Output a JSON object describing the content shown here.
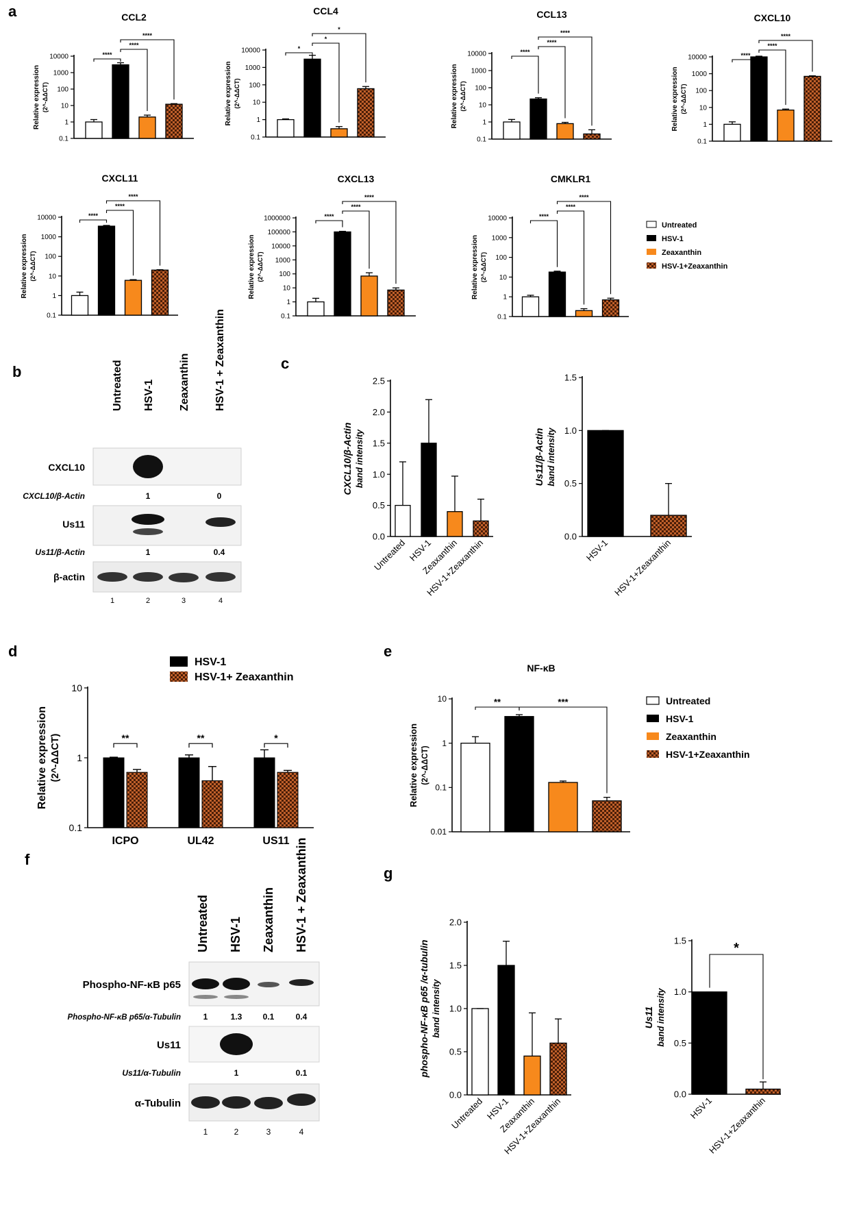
{
  "panel_labels": {
    "a": "a",
    "b": "b",
    "c": "c",
    "d": "d",
    "e": "e",
    "f": "f",
    "g": "g"
  },
  "legend": {
    "entries": [
      "Untreated",
      "HSV-1",
      "Zeaxanthin",
      "HSV-1+Zeaxanthin"
    ],
    "d_entries": [
      "HSV-1",
      "HSV-1+ Zeaxanthin"
    ]
  },
  "colors": {
    "untreated": "#ffffff",
    "hsv1": "#000000",
    "zea": "#f7891c",
    "combo": "#b8561d",
    "combo_dark": "#4a1e08"
  },
  "axis_text": {
    "rel_expr": "Relative expression",
    "ddct": "(2^-ΔΔCT)",
    "band_intensity": "band intensity"
  },
  "blot_b": {
    "lanes": [
      "Untreated",
      "HSV-1",
      "Zeaxanthin",
      "HSV-1 + Zeaxanthin"
    ],
    "lane_numbers": [
      "1",
      "2",
      "3",
      "4"
    ],
    "rows": [
      "CXCL10",
      "Us11",
      "β-actin"
    ],
    "ratio_labels": [
      "CXCL10/β-Actin",
      "Us11/β-Actin"
    ],
    "ratio_values": [
      [
        "",
        "1",
        "",
        "0"
      ],
      [
        "",
        "1",
        "",
        "0.4"
      ]
    ]
  },
  "blot_f": {
    "lanes": [
      "Untreated",
      "HSV-1",
      "Zeaxanthin",
      "HSV-1 + Zeaxanthin"
    ],
    "lane_numbers": [
      "1",
      "2",
      "3",
      "4"
    ],
    "rows": [
      "Phospho-NF-κB p65",
      "Us11",
      "α-Tubulin"
    ],
    "ratio_labels": [
      "Phospho-NF-κB p65/α-Tubulin",
      "Us11/α-Tubulin"
    ],
    "ratio_values": [
      [
        "1",
        "1.3",
        "0.1",
        "0.4"
      ],
      [
        "",
        "1",
        "",
        "0.1"
      ]
    ]
  },
  "chart_data": [
    {
      "id": "a1",
      "type": "bar",
      "title": "CCL2",
      "scale": "log",
      "ylim": [
        0.1,
        10000
      ],
      "ylabel": "Relative expression (2^-ΔΔCT)",
      "categories": [
        "Untreated",
        "HSV-1",
        "Zeaxanthin",
        "HSV-1+Zeaxanthin"
      ],
      "values": [
        1,
        3000,
        2,
        12
      ],
      "errors": [
        1.4,
        4000,
        2.6,
        13
      ],
      "annotations": [
        {
          "from": 0,
          "to": 1,
          "text": "****"
        },
        {
          "from": 1,
          "to": 2,
          "text": "****"
        },
        {
          "from": 1,
          "to": 3,
          "text": "****"
        }
      ]
    },
    {
      "id": "a2",
      "type": "bar",
      "title": "CCL4",
      "scale": "log",
      "ylim": [
        0.1,
        10000
      ],
      "ylabel": "Relative expression (2^-ΔΔCT)",
      "categories": [
        "Untreated",
        "HSV-1",
        "Zeaxanthin",
        "HSV-1+Zeaxanthin"
      ],
      "values": [
        1,
        3000,
        0.3,
        60
      ],
      "errors": [
        1.1,
        5000,
        0.4,
        80
      ],
      "annotations": [
        {
          "from": 0,
          "to": 1,
          "text": "*"
        },
        {
          "from": 1,
          "to": 2,
          "text": "*"
        },
        {
          "from": 1,
          "to": 3,
          "text": "*"
        }
      ]
    },
    {
      "id": "a3",
      "type": "bar",
      "title": "CCL13",
      "scale": "log",
      "ylim": [
        0.1,
        10000
      ],
      "ylabel": "Relative expression (2^-ΔΔCT)",
      "categories": [
        "Untreated",
        "HSV-1",
        "Zeaxanthin",
        "HSV-1+Zeaxanthin"
      ],
      "values": [
        1,
        22,
        0.8,
        0.2
      ],
      "errors": [
        1.4,
        26,
        0.95,
        0.35
      ],
      "annotations": [
        {
          "from": 0,
          "to": 1,
          "text": "****"
        },
        {
          "from": 1,
          "to": 2,
          "text": "****"
        },
        {
          "from": 1,
          "to": 3,
          "text": "****"
        }
      ]
    },
    {
      "id": "a4",
      "type": "bar",
      "title": "CXCL10",
      "scale": "log",
      "ylim": [
        0.1,
        10000
      ],
      "ylabel": "Relative expression (2^-ΔΔCT)",
      "categories": [
        "Untreated",
        "HSV-1",
        "Zeaxanthin",
        "HSV-1+Zeaxanthin"
      ],
      "values": [
        1,
        10000,
        7,
        700
      ],
      "errors": [
        1.4,
        11000,
        8,
        750
      ],
      "annotations": [
        {
          "from": 0,
          "to": 1,
          "text": "****"
        },
        {
          "from": 1,
          "to": 2,
          "text": "****"
        },
        {
          "from": 1,
          "to": 3,
          "text": "****"
        }
      ]
    },
    {
      "id": "a5",
      "type": "bar",
      "title": "CXCL11",
      "scale": "log",
      "ylim": [
        0.1,
        10000
      ],
      "ylabel": "Relative expression (2^-ΔΔCT)",
      "categories": [
        "Untreated",
        "HSV-1",
        "Zeaxanthin",
        "HSV-1+Zeaxanthin"
      ],
      "values": [
        1,
        3500,
        6,
        20
      ],
      "errors": [
        1.5,
        3800,
        6.5,
        21
      ],
      "annotations": [
        {
          "from": 0,
          "to": 1,
          "text": "****"
        },
        {
          "from": 1,
          "to": 2,
          "text": "****"
        },
        {
          "from": 1,
          "to": 3,
          "text": "****"
        }
      ]
    },
    {
      "id": "a6",
      "type": "bar",
      "title": "CXCL13",
      "scale": "log",
      "ylim": [
        0.1,
        1000000
      ],
      "ylabel": "Relative expression (2^-ΔΔCT)",
      "categories": [
        "Untreated",
        "HSV-1",
        "Zeaxanthin",
        "HSV-1+Zeaxanthin"
      ],
      "values": [
        1,
        100000,
        70,
        7
      ],
      "errors": [
        1.8,
        110000,
        120,
        10
      ],
      "annotations": [
        {
          "from": 0,
          "to": 1,
          "text": "****"
        },
        {
          "from": 1,
          "to": 2,
          "text": "****"
        },
        {
          "from": 1,
          "to": 3,
          "text": "****"
        }
      ]
    },
    {
      "id": "a7",
      "type": "bar",
      "title": "CMKLR1",
      "scale": "log",
      "ylim": [
        0.1,
        10000
      ],
      "ylabel": "Relative expression (2^-ΔΔCT)",
      "categories": [
        "Untreated",
        "HSV-1",
        "Zeaxanthin",
        "HSV-1+Zeaxanthin"
      ],
      "values": [
        1,
        18,
        0.2,
        0.7
      ],
      "errors": [
        1.2,
        20,
        0.25,
        0.85
      ],
      "annotations": [
        {
          "from": 0,
          "to": 1,
          "text": "****"
        },
        {
          "from": 1,
          "to": 2,
          "text": "****"
        },
        {
          "from": 1,
          "to": 3,
          "text": "****"
        }
      ]
    },
    {
      "id": "c1",
      "type": "bar",
      "title": "",
      "scale": "linear",
      "ylim": [
        0,
        2.5
      ],
      "ticks": [
        "0.0",
        "0.5",
        "1.0",
        "1.5",
        "2.0",
        "2.5"
      ],
      "ylabel": "CXCL10/β-Actin band intensity",
      "categories": [
        "Untreated",
        "HSV-1",
        "Zeaxanthin",
        "HSV-1+Zeaxanthin"
      ],
      "values": [
        0.5,
        1.5,
        0.4,
        0.25
      ],
      "errors": [
        1.2,
        2.2,
        0.97,
        0.6
      ],
      "annotations": []
    },
    {
      "id": "c2",
      "type": "bar",
      "title": "",
      "scale": "linear",
      "ylim": [
        0,
        1.5
      ],
      "ticks": [
        "0.0",
        "0.5",
        "1.0",
        "1.5"
      ],
      "ylabel": "Us11/β-Actin band intensity",
      "categories": [
        "HSV-1",
        "HSV-1+Zeaxanthin"
      ],
      "values": [
        1.0,
        0.2
      ],
      "errors": [
        1.0,
        0.5
      ],
      "annotations": []
    },
    {
      "id": "d",
      "type": "bar",
      "title": "",
      "scale": "log",
      "ylim": [
        0.1,
        10
      ],
      "ylabel": "Relative expression (2^-ΔΔCT)",
      "categories": [
        "ICPO",
        "UL42",
        "US11"
      ],
      "series": [
        {
          "name": "HSV-1",
          "values": [
            1.0,
            1.0,
            1.0
          ],
          "errors": [
            1.02,
            1.1,
            1.3
          ]
        },
        {
          "name": "HSV-1+ Zeaxanthin",
          "values": [
            0.62,
            0.47,
            0.62
          ],
          "errors": [
            0.68,
            0.75,
            0.66
          ]
        }
      ],
      "annotations": [
        {
          "group": 0,
          "text": "**"
        },
        {
          "group": 1,
          "text": "**"
        },
        {
          "group": 2,
          "text": "*"
        }
      ]
    },
    {
      "id": "e",
      "type": "bar",
      "title": "NF-κB",
      "scale": "log",
      "ylim": [
        0.01,
        10
      ],
      "ylabel": "Relative expression (2^-ΔΔCT)",
      "categories": [
        "Untreated",
        "HSV-1",
        "Zeaxanthin",
        "HSV-1+Zeaxanthin"
      ],
      "values": [
        1,
        4,
        0.13,
        0.05
      ],
      "errors": [
        1.4,
        4.4,
        0.14,
        0.06
      ],
      "annotations": [
        {
          "from": 0,
          "to": 1,
          "text": "**"
        },
        {
          "from": 1,
          "to": 3,
          "text": "***"
        }
      ]
    },
    {
      "id": "g1",
      "type": "bar",
      "title": "",
      "scale": "linear",
      "ylim": [
        0,
        2.0
      ],
      "ticks": [
        "0.0",
        "0.5",
        "1.0",
        "1.5",
        "2.0"
      ],
      "ylabel": "phospho-NF-κB p65 /α-tubulin band intensity",
      "categories": [
        "Untreated",
        "HSV-1",
        "Zeaxanthin",
        "HSV-1+Zeaxanthin"
      ],
      "values": [
        1.0,
        1.5,
        0.45,
        0.6
      ],
      "errors": [
        1.0,
        1.78,
        0.95,
        0.88
      ],
      "annotations": []
    },
    {
      "id": "g2",
      "type": "bar",
      "title": "",
      "scale": "linear",
      "ylim": [
        0,
        1.5
      ],
      "ticks": [
        "0.0",
        "0.5",
        "1.0",
        "1.5"
      ],
      "ylabel": "Us11 band intensity",
      "categories": [
        "HSV-1",
        "HSV-1+Zeaxanthin"
      ],
      "values": [
        1.0,
        0.05
      ],
      "errors": [
        1.0,
        0.12
      ],
      "annotations": [
        {
          "from": 0,
          "to": 1,
          "text": "*"
        }
      ]
    }
  ]
}
